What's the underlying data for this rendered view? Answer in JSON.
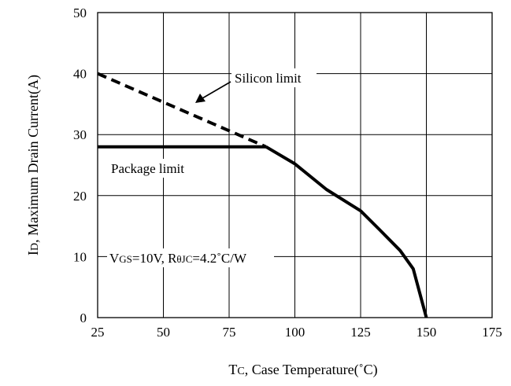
{
  "chart_data": {
    "type": "line",
    "title": "",
    "xlabel": {
      "main": "T",
      "sub": "C",
      "rest": ", Case Temperature(˚C)"
    },
    "ylabel": {
      "main": "I",
      "sub": "D",
      "rest": ", Maximum Drain Current(A)"
    },
    "xlim": [
      25,
      175
    ],
    "ylim": [
      0,
      50
    ],
    "xticks": [
      25,
      50,
      75,
      100,
      125,
      150,
      175
    ],
    "yticks": [
      0,
      10,
      20,
      30,
      40,
      50
    ],
    "grid": true,
    "series": [
      {
        "name": "Silicon limit",
        "style": "dashed",
        "x": [
          25,
          89
        ],
        "y": [
          40,
          28
        ]
      },
      {
        "name": "Package limit",
        "style": "solid",
        "x": [
          25,
          89
        ],
        "y": [
          28,
          28
        ]
      },
      {
        "name": "",
        "style": "solid",
        "x": [
          89,
          100,
          112,
          125,
          132,
          140,
          145,
          150
        ],
        "y": [
          28,
          25.2,
          21,
          17.5,
          14.5,
          11,
          8,
          0
        ]
      }
    ],
    "annotations": {
      "silicon": "Silicon limit",
      "package": "Package limit",
      "conditions": {
        "v": "V",
        "v_sub": "GS",
        "v_rest": "=10V, R",
        "r_sub": "θJC",
        "r_rest": "=4.2˚C/W"
      }
    }
  }
}
